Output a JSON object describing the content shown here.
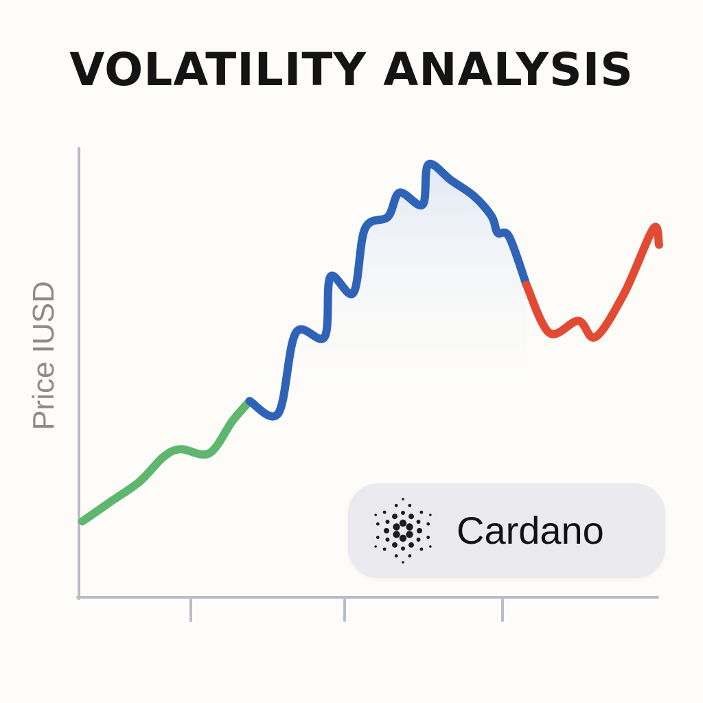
{
  "title": "VOLATILITY ANALYSIS",
  "legend_badge": {
    "label": "Cardano",
    "icon": "cardano-logo-icon"
  },
  "colors": {
    "background": "#fdfcf9",
    "axis": "#b9bcc8",
    "rise": "#5fb66e",
    "volatile": "#2f63b8",
    "rebound": "#e24a33",
    "fill": "#dfe6f5"
  },
  "chart_data": {
    "type": "line",
    "title": "VOLATILITY ANALYSIS",
    "xlabel": "",
    "ylabel": "Price IUSD",
    "x_ticks": 3,
    "x_range": [
      0,
      100
    ],
    "y_range": [
      0,
      100
    ],
    "tick_labels_shown": false,
    "grid": false,
    "legend_placement": "bottom-right",
    "series": [
      {
        "name": "Cardano",
        "x": [
          0,
          5,
          10,
          14,
          17,
          22,
          26,
          29,
          34,
          37,
          42,
          43,
          47,
          49,
          53,
          55,
          59,
          60,
          64,
          68,
          71,
          72,
          74,
          77,
          81,
          86,
          89,
          94,
          99,
          100
        ],
        "y": [
          9,
          14,
          19,
          25,
          27,
          26,
          34,
          39,
          36,
          56,
          55,
          70,
          66,
          82,
          85,
          91,
          88,
          98,
          94,
          90,
          85,
          81,
          80,
          68,
          56,
          59,
          55,
          66,
          82,
          78
        ],
        "segments": [
          {
            "phase": "rise",
            "from_x": 0,
            "to_x": 29
          },
          {
            "phase": "volatile",
            "from_x": 29,
            "to_x": 77
          },
          {
            "phase": "rebound",
            "from_x": 77,
            "to_x": 100
          }
        ]
      }
    ]
  }
}
